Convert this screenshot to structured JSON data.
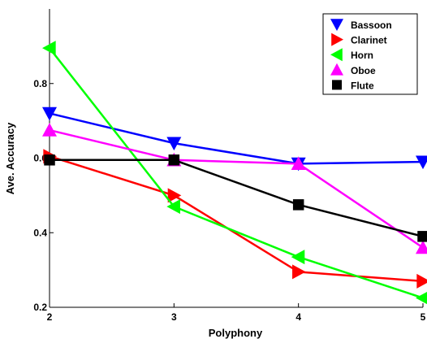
{
  "chart_data": {
    "type": "line",
    "title": "",
    "xlabel": "Polyphony",
    "ylabel": "Ave. Accuracy",
    "x": [
      2,
      3,
      4,
      5
    ],
    "x_ticks": [
      "2",
      "3",
      "4",
      "5"
    ],
    "y_ticks": [
      "0.2",
      "0.4",
      "0.6",
      "0.8"
    ],
    "xlim": [
      2,
      5
    ],
    "ylim": [
      0.2,
      1.0
    ],
    "grid": false,
    "legend_position": "top-right",
    "series": [
      {
        "name": "Bassoon",
        "values": [
          0.72,
          0.64,
          0.585,
          0.59
        ],
        "color": "#0000ff",
        "marker": "triangle-down"
      },
      {
        "name": "Clarinet",
        "values": [
          0.605,
          0.5,
          0.295,
          0.27
        ],
        "color": "#ff0000",
        "marker": "triangle-right"
      },
      {
        "name": "Horn",
        "values": [
          0.895,
          0.47,
          0.335,
          0.225
        ],
        "color": "#00ff00",
        "marker": "triangle-left"
      },
      {
        "name": "Oboe",
        "values": [
          0.675,
          0.595,
          0.585,
          0.36
        ],
        "color": "#ff00ff",
        "marker": "triangle-up"
      },
      {
        "name": "Flute",
        "values": [
          0.595,
          0.595,
          0.475,
          0.39
        ],
        "color": "#000000",
        "marker": "square"
      }
    ]
  }
}
